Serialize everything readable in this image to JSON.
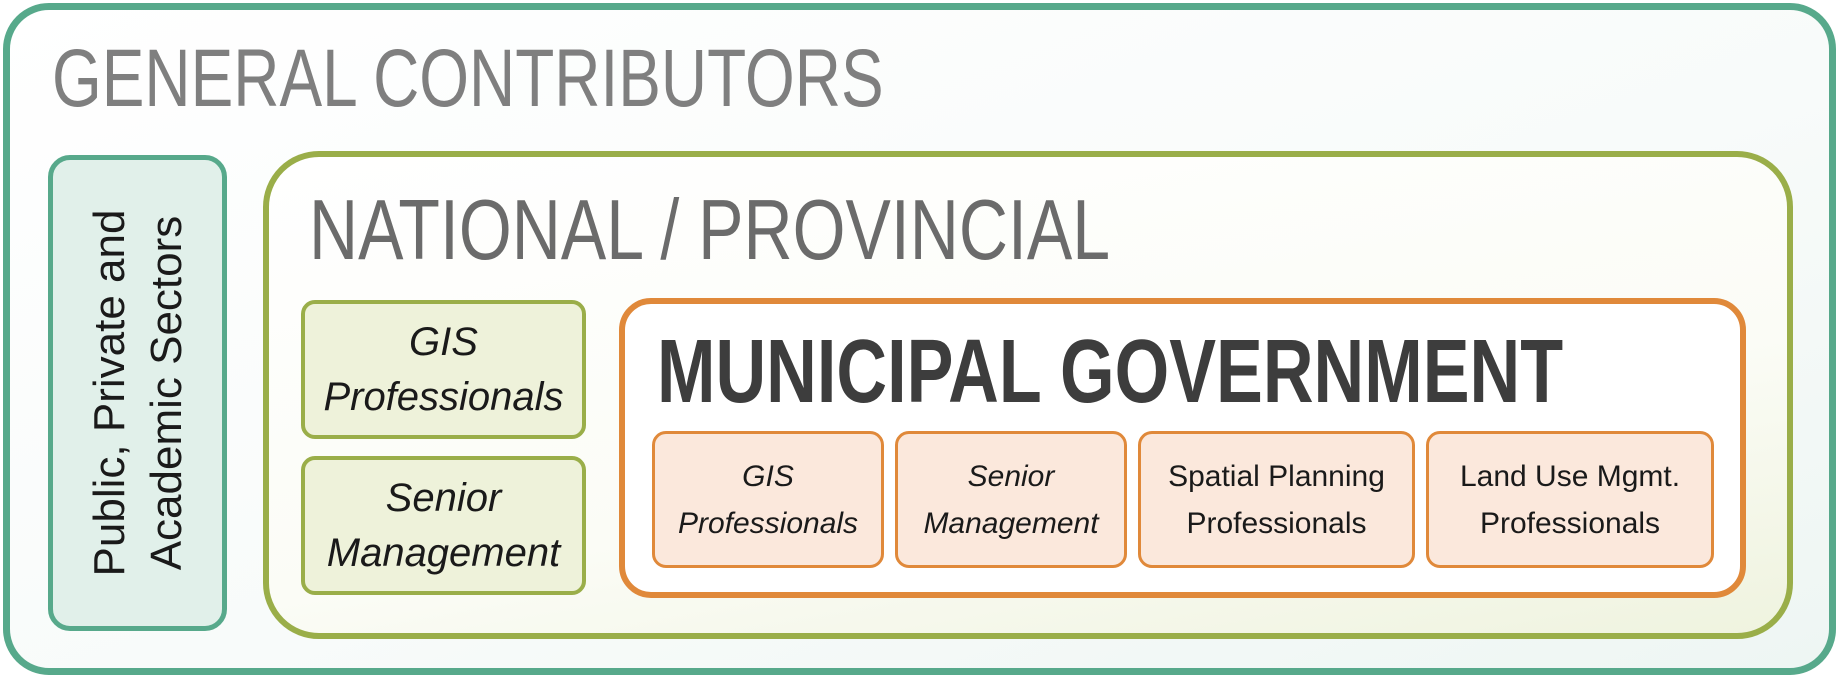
{
  "general": {
    "title": "GENERAL CONTRIBUTORS",
    "sector": {
      "line1": "Public, Private and",
      "line2": "Academic Sectors"
    }
  },
  "national": {
    "title": "NATIONAL / PROVINCIAL",
    "cards": [
      {
        "line1": "GIS",
        "line2": "Professionals"
      },
      {
        "line1": "Senior",
        "line2": "Management"
      }
    ]
  },
  "municipal": {
    "title": "MUNICIPAL GOVERNMENT",
    "cards": [
      {
        "line1": "GIS",
        "line2": "Professionals"
      },
      {
        "line1": "Senior",
        "line2": "Management"
      },
      {
        "line1": "Spatial Planning",
        "line2": "Professionals"
      },
      {
        "line1": "Land Use Mgmt.",
        "line2": "Professionals"
      }
    ]
  },
  "colors": {
    "general_border": "#57a98b",
    "national_border": "#9aae49",
    "municipal_border": "#e0893a"
  }
}
